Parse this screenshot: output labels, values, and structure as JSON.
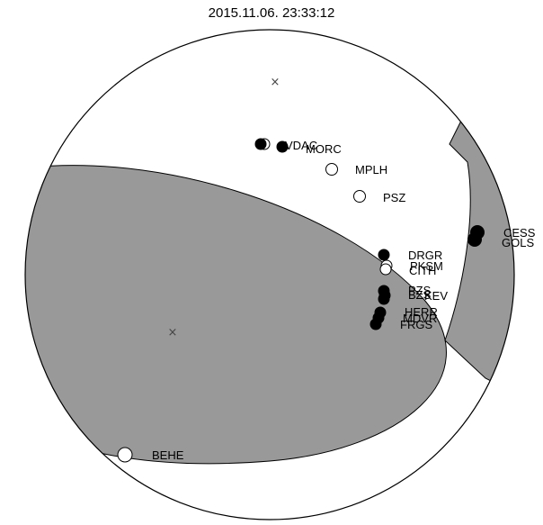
{
  "title": "2015.11.06. 23:33:12",
  "colors": {
    "fill": "#999999",
    "line": "#000000",
    "background": "#ffffff"
  },
  "axis_markers": [
    {
      "name": "upper-axis-marker",
      "symbol": "×"
    },
    {
      "name": "lower-axis-marker",
      "symbol": "×"
    }
  ],
  "stations": [
    {
      "name": "VDAC",
      "polarity": "filled"
    },
    {
      "name": "MORC",
      "polarity": "filled"
    },
    {
      "name": "MPLH",
      "polarity": "open"
    },
    {
      "name": "PSZ",
      "polarity": "open"
    },
    {
      "name": "CESS",
      "polarity": "filled"
    },
    {
      "name": "GOLS",
      "polarity": "filled"
    },
    {
      "name": "DRGR",
      "polarity": "filled"
    },
    {
      "name": "PKSM",
      "polarity": "open"
    },
    {
      "name": "CITH",
      "polarity": "open"
    },
    {
      "name": "PZS",
      "polarity": "filled"
    },
    {
      "name": "BZS",
      "polarity": "filled"
    },
    {
      "name": "KEV",
      "polarity": "filled"
    },
    {
      "name": "HERR",
      "polarity": "filled"
    },
    {
      "name": "MDVR",
      "polarity": "filled"
    },
    {
      "name": "FRGS",
      "polarity": "filled"
    },
    {
      "name": "BEHE",
      "polarity": "open"
    }
  ]
}
